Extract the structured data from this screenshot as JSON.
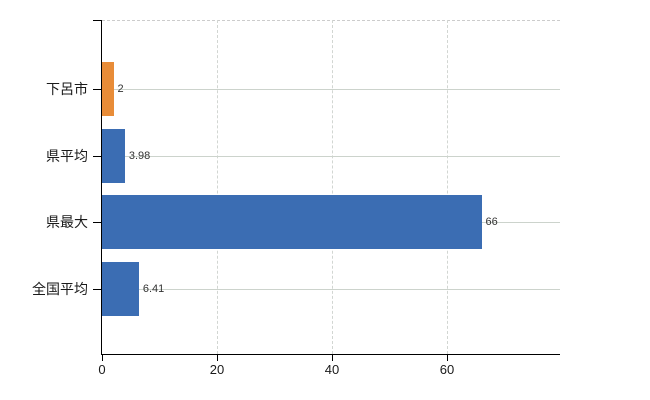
{
  "chart_data": {
    "type": "bar",
    "orientation": "horizontal",
    "title": "",
    "xlabel": "",
    "ylabel": "",
    "categories": [
      "下呂市",
      "県平均",
      "県最大",
      "全国平均"
    ],
    "values": [
      2,
      3.98,
      66,
      6.41
    ],
    "value_labels": [
      "2",
      "3.98",
      "66",
      "6.41"
    ],
    "bar_colors": [
      "#e88c38",
      "#3b6db3",
      "#3b6db3",
      "#3b6db3"
    ],
    "xlim": [
      0,
      79.6
    ],
    "x_ticks": [
      0,
      20,
      40,
      60
    ],
    "x_tick_labels": [
      "0",
      "20",
      "40",
      "60"
    ],
    "grid": {
      "horizontal_style": "solid",
      "vertical_style": "dashed",
      "top_border_style": "dashed"
    },
    "legend": "none"
  },
  "colors": {
    "bar_blue": "#3b6db3",
    "bar_orange": "#e88c38",
    "grid_line": "#ccd3cc",
    "axis_line": "#000000",
    "category_text": "#1a1a1a",
    "value_text": "#333333",
    "background": "#ffffff"
  }
}
